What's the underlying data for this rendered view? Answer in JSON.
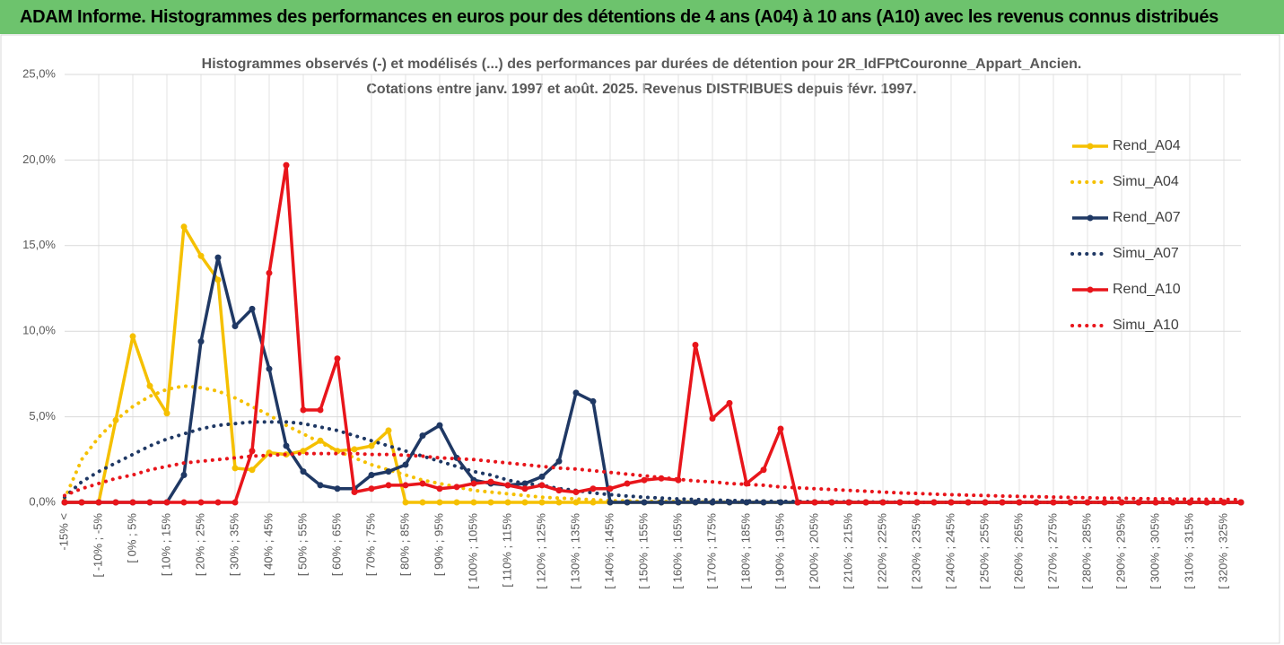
{
  "header": {
    "title": "ADAM Informe. Histogrammes des performances en euros pour des détentions de 4 ans (A04) à 10 ans (A10) avec les revenus connus distribués"
  },
  "chart_data": {
    "type": "line",
    "title": [
      "Histogrammes observés (-) et modélisés (...) des performances par durées de détention pour 2R_IdFPtCouronne_Appart_Ancien.",
      "Cotations entre janv. 1997 et août. 2025. Revenus DISTRIBUES depuis févr. 1997."
    ],
    "categories": [
      "-15% <",
      null,
      "[ -10% ; -5%",
      null,
      "[ 0% ; 5%",
      null,
      "[ 10% ; 15%",
      null,
      "[ 20% ; 25%",
      null,
      "[ 30% ; 35%",
      null,
      "[ 40% ; 45%",
      null,
      "[ 50% ; 55%",
      null,
      "[ 60% ; 65%",
      null,
      "[ 70% ; 75%",
      null,
      "[ 80% ; 85%",
      null,
      "[ 90% ; 95%",
      null,
      "[ 100% ; 105%",
      null,
      "[ 110% ; 115%",
      null,
      "[ 120% ; 125%",
      null,
      "[ 130% ; 135%",
      null,
      "[ 140% ; 145%",
      null,
      "[ 150% ; 155%",
      null,
      "[ 160% ; 165%",
      null,
      "[ 170% ; 175%",
      null,
      "[ 180% ; 185%",
      null,
      "[ 190% ; 195%",
      null,
      "[ 200% ; 205%",
      null,
      "[ 210% ; 215%",
      null,
      "[ 220% ; 225%",
      null,
      "[ 230% ; 235%",
      null,
      "[ 240% ; 245%",
      null,
      "[ 250% ; 255%",
      null,
      "[ 260% ; 265%",
      null,
      "[ 270% ; 275%",
      null,
      "[ 280% ; 285%",
      null,
      "[ 290% ; 295%",
      null,
      "[ 300% ; 305%",
      null,
      "[ 310% ; 315%",
      null,
      "[ 320% ; 325%",
      null
    ],
    "ylim": [
      0,
      25
    ],
    "yticks": [
      {
        "value": 0,
        "label": "0,0%"
      },
      {
        "value": 5,
        "label": "5,0%"
      },
      {
        "value": 10,
        "label": "10,0%"
      },
      {
        "value": 15,
        "label": "15,0%"
      },
      {
        "value": 20,
        "label": "20,0%"
      },
      {
        "value": 25,
        "label": "25,0%"
      }
    ],
    "grid": true,
    "legend": "right",
    "series": [
      {
        "name": "Rend_A04",
        "color": "#f5c000",
        "style": "solid",
        "markers": true,
        "values": [
          0,
          0,
          0,
          4.8,
          9.7,
          6.8,
          5.2,
          16.1,
          14.4,
          13.0,
          2.0,
          1.9,
          2.9,
          2.8,
          3.0,
          3.6,
          3.0,
          3.1,
          3.3,
          4.2,
          0,
          0,
          0,
          0,
          0,
          0,
          0,
          0,
          0,
          0,
          0,
          0,
          0,
          0,
          0,
          0,
          0,
          0,
          0,
          0,
          0,
          0,
          0,
          0,
          0,
          0,
          0,
          0,
          0,
          0,
          0,
          0,
          0,
          0,
          0,
          0,
          0,
          0,
          0,
          0,
          0,
          0,
          0,
          0,
          0,
          0,
          0,
          0,
          0,
          0
        ]
      },
      {
        "name": "Simu_A04",
        "color": "#f5c000",
        "style": "dotted",
        "markers": false,
        "values": [
          0.2,
          2.5,
          3.8,
          4.8,
          5.6,
          6.2,
          6.6,
          6.8,
          6.7,
          6.5,
          6.1,
          5.6,
          5.1,
          4.5,
          4.0,
          3.5,
          3.0,
          2.6,
          2.2,
          1.9,
          1.6,
          1.3,
          1.1,
          0.9,
          0.7,
          0.6,
          0.5,
          0.4,
          0.3,
          0.25,
          0.2,
          0.15,
          0.1,
          0.08,
          0.06,
          0.05,
          0.04,
          0.03,
          0.02,
          0.01,
          0,
          0,
          0,
          0,
          0,
          0,
          0,
          0,
          0,
          0,
          0,
          0,
          0,
          0,
          0,
          0,
          0,
          0,
          0,
          0,
          0,
          0,
          0,
          0,
          0,
          0,
          0,
          0,
          0,
          0
        ]
      },
      {
        "name": "Rend_A07",
        "color": "#1f3864",
        "style": "solid",
        "markers": true,
        "values": [
          0,
          0,
          0,
          0,
          0,
          0,
          0,
          1.6,
          9.4,
          14.3,
          10.3,
          11.3,
          7.8,
          3.3,
          1.8,
          1.0,
          0.8,
          0.8,
          1.6,
          1.8,
          2.2,
          3.9,
          4.5,
          2.6,
          1.3,
          1.1,
          1.0,
          1.1,
          1.5,
          2.4,
          6.4,
          5.9,
          0,
          0,
          0,
          0,
          0,
          0,
          0,
          0,
          0,
          0,
          0,
          0,
          0,
          0,
          0,
          0,
          0,
          0,
          0,
          0,
          0,
          0,
          0,
          0,
          0,
          0,
          0,
          0,
          0,
          0,
          0,
          0,
          0,
          0,
          0,
          0,
          0,
          0
        ]
      },
      {
        "name": "Simu_A07",
        "color": "#1f3864",
        "style": "dotted",
        "markers": false,
        "values": [
          0.3,
          1.2,
          1.8,
          2.3,
          2.8,
          3.3,
          3.7,
          4.0,
          4.3,
          4.5,
          4.6,
          4.7,
          4.7,
          4.7,
          4.6,
          4.4,
          4.2,
          3.9,
          3.6,
          3.3,
          3.0,
          2.7,
          2.4,
          2.1,
          1.8,
          1.6,
          1.3,
          1.1,
          1.0,
          0.8,
          0.7,
          0.55,
          0.45,
          0.37,
          0.3,
          0.25,
          0.2,
          0.17,
          0.14,
          0.11,
          0.09,
          0.07,
          0.06,
          0.05,
          0.04,
          0.03,
          0.03,
          0.02,
          0.02,
          0.01,
          0,
          0,
          0,
          0,
          0,
          0,
          0,
          0,
          0,
          0,
          0,
          0,
          0,
          0,
          0,
          0,
          0,
          0,
          0,
          0
        ]
      },
      {
        "name": "Rend_A10",
        "color": "#e8151b",
        "style": "solid",
        "markers": true,
        "values": [
          0,
          0,
          0,
          0,
          0,
          0,
          0,
          0,
          0,
          0,
          0,
          3.0,
          13.4,
          19.7,
          5.4,
          5.4,
          8.4,
          0.6,
          0.8,
          1.0,
          1.0,
          1.1,
          0.8,
          0.9,
          1.1,
          1.2,
          1.0,
          0.8,
          1.0,
          0.7,
          0.6,
          0.8,
          0.8,
          1.1,
          1.3,
          1.4,
          1.3,
          9.2,
          4.9,
          5.8,
          1.1,
          1.9,
          4.3,
          0,
          0,
          0,
          0,
          0,
          0,
          0,
          0,
          0,
          0,
          0,
          0,
          0,
          0,
          0,
          0,
          0,
          0,
          0,
          0,
          0,
          0,
          0,
          0,
          0,
          0,
          0
        ]
      },
      {
        "name": "Simu_A10",
        "color": "#e8151b",
        "style": "dotted",
        "markers": false,
        "values": [
          0.4,
          0.8,
          1.1,
          1.4,
          1.6,
          1.9,
          2.1,
          2.3,
          2.4,
          2.5,
          2.6,
          2.7,
          2.75,
          2.8,
          2.85,
          2.85,
          2.85,
          2.85,
          2.8,
          2.8,
          2.75,
          2.7,
          2.6,
          2.55,
          2.5,
          2.4,
          2.3,
          2.2,
          2.1,
          2.0,
          1.95,
          1.85,
          1.75,
          1.65,
          1.55,
          1.45,
          1.35,
          1.25,
          1.2,
          1.1,
          1.05,
          1.0,
          0.9,
          0.85,
          0.8,
          0.75,
          0.7,
          0.65,
          0.6,
          0.55,
          0.52,
          0.48,
          0.45,
          0.42,
          0.4,
          0.37,
          0.35,
          0.33,
          0.31,
          0.29,
          0.27,
          0.25,
          0.24,
          0.22,
          0.21,
          0.2,
          0.19,
          0.18,
          0.17,
          0.16
        ]
      }
    ]
  }
}
